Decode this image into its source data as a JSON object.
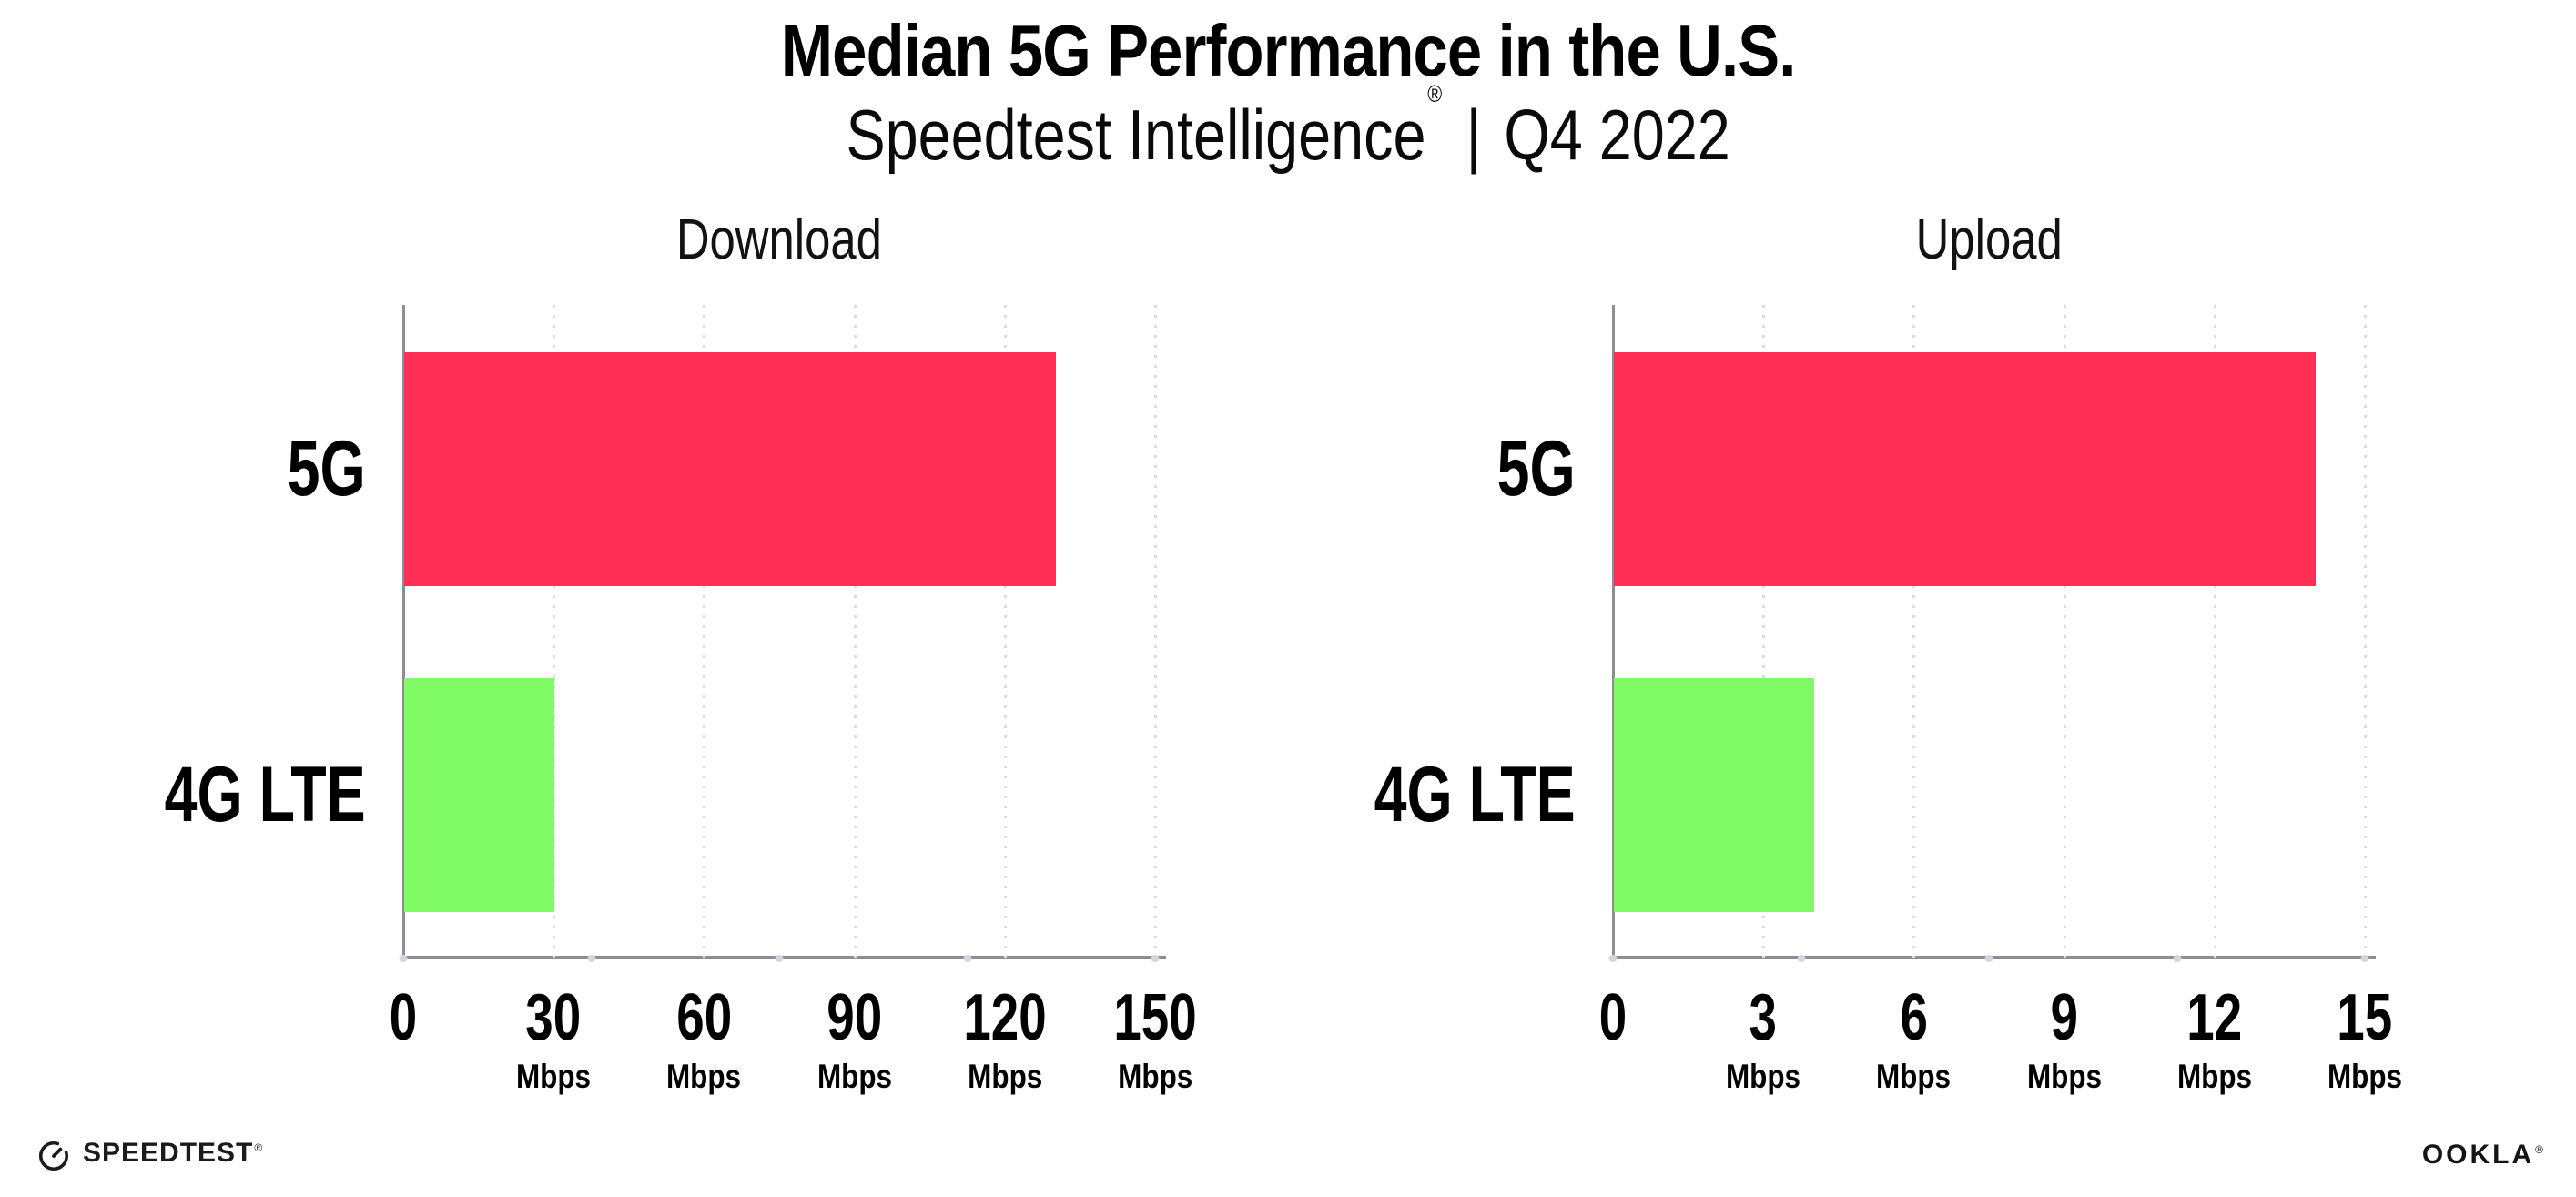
{
  "header": {
    "title": "Median 5G Performance in the U.S.",
    "subtitle_brand": "Speedtest Intelligence",
    "subtitle_reg": "®",
    "subtitle_separator": "|",
    "subtitle_period": "Q4 2022"
  },
  "chart_data": [
    {
      "type": "bar",
      "orientation": "horizontal",
      "title": "Download",
      "categories": [
        "5G",
        "4G LTE"
      ],
      "values": [
        130,
        30
      ],
      "unit": "Mbps",
      "xlim": [
        0,
        150
      ],
      "xticks": [
        0,
        30,
        60,
        90,
        120,
        150
      ],
      "bar_colors": [
        "#FF2E55",
        "#80FB66"
      ],
      "grid": "dotted-vertical",
      "legend": "none"
    },
    {
      "type": "bar",
      "orientation": "horizontal",
      "title": "Upload",
      "categories": [
        "5G",
        "4G LTE"
      ],
      "values": [
        14,
        4
      ],
      "unit": "Mbps",
      "xlim": [
        0,
        15
      ],
      "xticks": [
        0,
        3,
        6,
        9,
        12,
        15
      ],
      "bar_colors": [
        "#FF2E55",
        "#80FB66"
      ],
      "grid": "dotted-vertical",
      "legend": "none"
    }
  ],
  "footer": {
    "speedtest_label": "SPEEDTEST",
    "speedtest_reg": "®",
    "ookla_label": "OOKLA",
    "ookla_reg": "®"
  },
  "colors": {
    "bar_5g": "#FF2E55",
    "bar_4g_lte": "#80FB66",
    "axis": "#8d8d94",
    "gridline": "#dadce6",
    "text": "#000000"
  }
}
